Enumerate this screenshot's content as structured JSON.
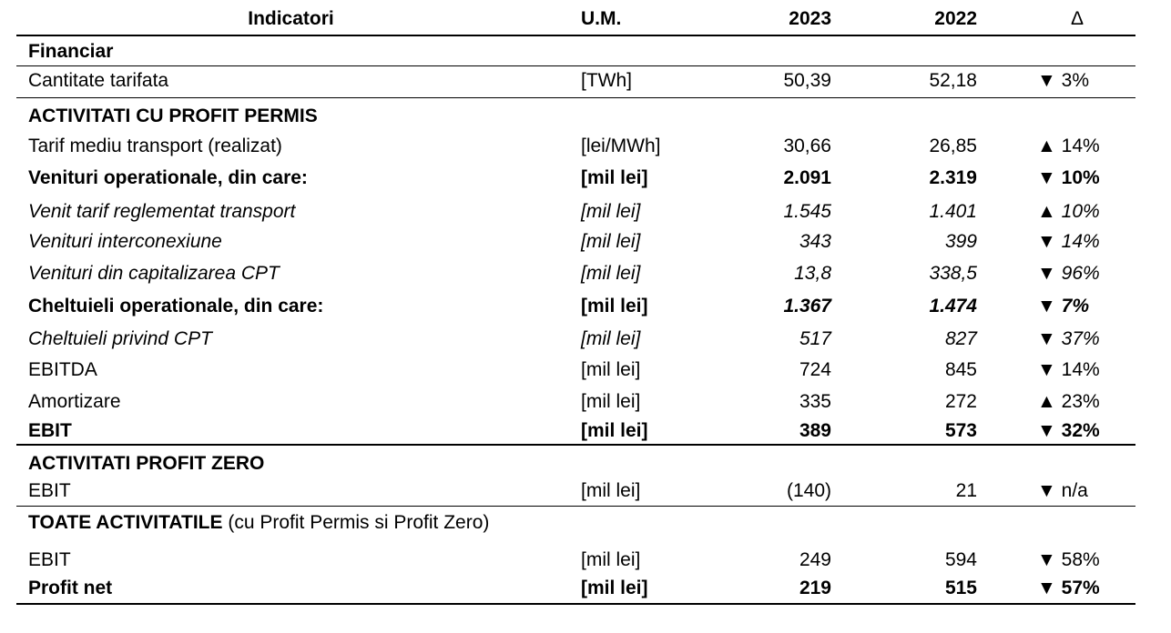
{
  "header": {
    "indicator": "Indicatori",
    "um": "U.M.",
    "year1": "2023",
    "year2": "2022",
    "delta": "Δ"
  },
  "rows": [
    {
      "type": "section",
      "name": "Financiar",
      "suffix": ""
    },
    {
      "type": "data",
      "name": "Cantitate tarifata",
      "um": "[TWh]",
      "v2023": "50,39",
      "v2022": "52,18",
      "arrow": "▼",
      "pct": "3%"
    },
    {
      "type": "section",
      "name": "ACTIVITATI CU PROFIT PERMIS",
      "suffix": ""
    },
    {
      "type": "data",
      "name": "Tarif mediu transport (realizat)",
      "um": "[lei/MWh]",
      "v2023": "30,66",
      "v2022": "26,85",
      "arrow": "▲",
      "pct": "14%"
    },
    {
      "type": "data",
      "name": "Venituri operationale, din care:",
      "um": "[mil lei]",
      "v2023": "2.091",
      "v2022": "2.319",
      "arrow": "▼",
      "pct": "10%"
    },
    {
      "type": "data",
      "name": "Venit tarif reglementat transport",
      "um": "[mil lei]",
      "v2023": "1.545",
      "v2022": "1.401",
      "arrow": "▲",
      "pct": "10%"
    },
    {
      "type": "data",
      "name": "Venituri interconexiune",
      "um": "[mil lei]",
      "v2023": "343",
      "v2022": "399",
      "arrow": "▼",
      "pct": "14%"
    },
    {
      "type": "data",
      "name": "Venituri din capitalizarea CPT",
      "um": "[mil lei]",
      "v2023": "13,8",
      "v2022": "338,5",
      "arrow": "▼",
      "pct": "96%"
    },
    {
      "type": "data",
      "name": "Cheltuieli operationale, din care:",
      "um": "[mil lei]",
      "v2023": "1.367",
      "v2022": "1.474",
      "arrow": "▼",
      "pct": "7%"
    },
    {
      "type": "data",
      "name": "Cheltuieli privind CPT",
      "um": "[mil lei]",
      "v2023": "517",
      "v2022": "827",
      "arrow": "▼",
      "pct": "37%"
    },
    {
      "type": "data",
      "name": "EBITDA",
      "um": "[mil lei]",
      "v2023": "724",
      "v2022": "845",
      "arrow": "▼",
      "pct": "14%"
    },
    {
      "type": "data",
      "name": "Amortizare",
      "um": "[mil lei]",
      "v2023": "335",
      "v2022": "272",
      "arrow": "▲",
      "pct": "23%"
    },
    {
      "type": "data",
      "name": "EBIT",
      "um": "[mil lei]",
      "v2023": "389",
      "v2022": "573",
      "arrow": "▼",
      "pct": "32%"
    },
    {
      "type": "section",
      "name": "ACTIVITATI PROFIT ZERO",
      "suffix": ""
    },
    {
      "type": "data",
      "name": "EBIT",
      "um": "[mil lei]",
      "v2023": "(140)",
      "v2022": "21",
      "arrow": "▼",
      "pct": "n/a"
    },
    {
      "type": "section",
      "name": "TOATE ACTIVITATILE",
      "suffix": " (cu Profit Permis si Profit Zero)"
    },
    {
      "type": "data",
      "name": "EBIT",
      "um": "[mil lei]",
      "v2023": "249",
      "v2022": "594",
      "arrow": "▼",
      "pct": "58%"
    },
    {
      "type": "data",
      "name": "Profit net",
      "um": "[mil lei]",
      "v2023": "219",
      "v2022": "515",
      "arrow": "▼",
      "pct": "57%"
    }
  ]
}
